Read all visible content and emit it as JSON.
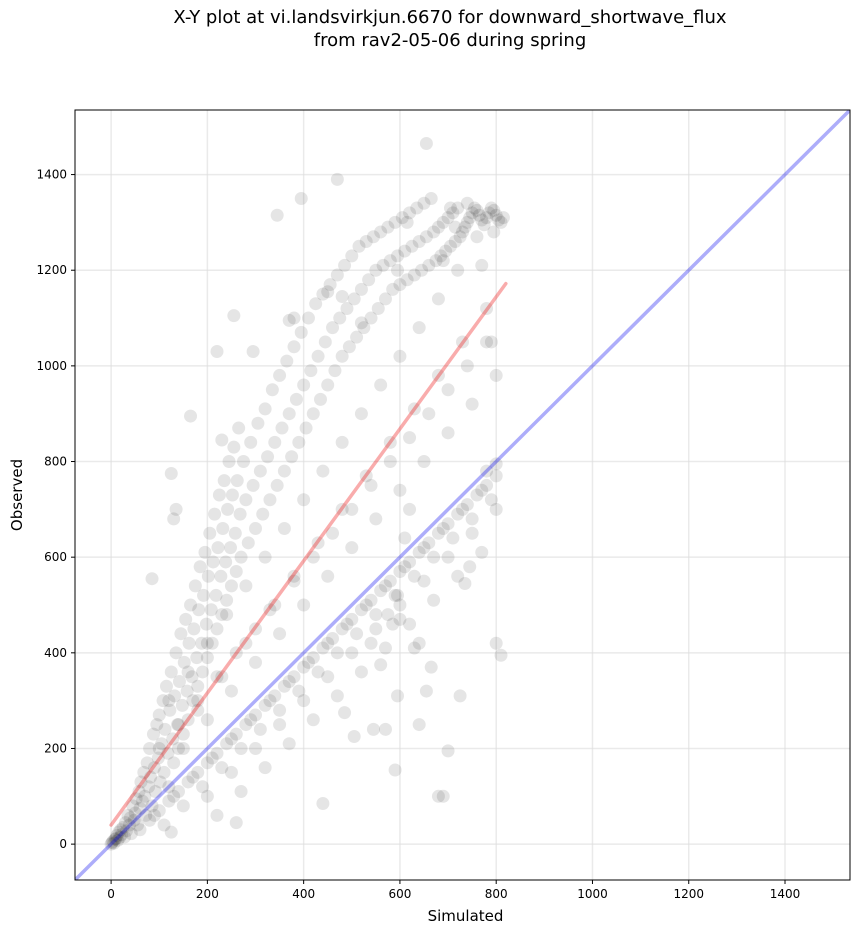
{
  "chart_data": {
    "type": "scatter",
    "title_lines": [
      "X-Y plot at vi.landsvirkjun.6670 for downward_shortwave_flux",
      "from rav2-05-06 during spring"
    ],
    "xlabel": "Simulated",
    "ylabel": "Observed",
    "xlim": [
      -75,
      1535
    ],
    "ylim": [
      -75,
      1535
    ],
    "xticks": [
      0,
      200,
      400,
      600,
      800,
      1000,
      1200,
      1400
    ],
    "yticks": [
      0,
      200,
      400,
      600,
      800,
      1000,
      1200,
      1400
    ],
    "grid": true,
    "identity_line": {
      "x": [
        -75,
        1535
      ],
      "y": [
        -75,
        1535
      ],
      "color": "#0000ee"
    },
    "regression_line": {
      "x": [
        0,
        820
      ],
      "y": [
        40,
        1172
      ],
      "color": "#ee1111"
    },
    "point_color": "#000000",
    "points": [
      [
        0,
        0
      ],
      [
        2,
        3
      ],
      [
        4,
        6
      ],
      [
        6,
        2
      ],
      [
        8,
        10
      ],
      [
        10,
        12
      ],
      [
        12,
        18
      ],
      [
        14,
        8
      ],
      [
        16,
        25
      ],
      [
        18,
        14
      ],
      [
        20,
        30
      ],
      [
        22,
        20
      ],
      [
        25,
        35
      ],
      [
        28,
        15
      ],
      [
        30,
        45
      ],
      [
        32,
        28
      ],
      [
        35,
        60
      ],
      [
        38,
        40
      ],
      [
        40,
        55
      ],
      [
        42,
        22
      ],
      [
        45,
        80
      ],
      [
        48,
        50
      ],
      [
        50,
        65
      ],
      [
        52,
        95
      ],
      [
        55,
        40
      ],
      [
        58,
        110
      ],
      [
        60,
        75
      ],
      [
        62,
        130
      ],
      [
        65,
        90
      ],
      [
        68,
        150
      ],
      [
        70,
        100
      ],
      [
        72,
        60
      ],
      [
        75,
        170
      ],
      [
        78,
        120
      ],
      [
        80,
        200
      ],
      [
        82,
        140
      ],
      [
        85,
        80
      ],
      [
        88,
        230
      ],
      [
        90,
        160
      ],
      [
        92,
        110
      ],
      [
        95,
        250
      ],
      [
        98,
        180
      ],
      [
        100,
        270
      ],
      [
        102,
        130
      ],
      [
        105,
        210
      ],
      [
        108,
        300
      ],
      [
        110,
        150
      ],
      [
        112,
        240
      ],
      [
        115,
        330
      ],
      [
        118,
        190
      ],
      [
        120,
        120
      ],
      [
        122,
        280
      ],
      [
        125,
        360
      ],
      [
        128,
        220
      ],
      [
        130,
        170
      ],
      [
        132,
        310
      ],
      [
        135,
        400
      ],
      [
        138,
        250
      ],
      [
        140,
        200
      ],
      [
        142,
        340
      ],
      [
        145,
        440
      ],
      [
        148,
        290
      ],
      [
        150,
        230
      ],
      [
        152,
        380
      ],
      [
        155,
        470
      ],
      [
        158,
        320
      ],
      [
        160,
        260
      ],
      [
        162,
        420
      ],
      [
        165,
        500
      ],
      [
        168,
        350
      ],
      [
        170,
        300
      ],
      [
        172,
        450
      ],
      [
        175,
        540
      ],
      [
        178,
        390
      ],
      [
        180,
        330
      ],
      [
        182,
        490
      ],
      [
        185,
        580
      ],
      [
        188,
        420
      ],
      [
        190,
        360
      ],
      [
        192,
        520
      ],
      [
        195,
        610
      ],
      [
        198,
        460
      ],
      [
        200,
        390
      ],
      [
        202,
        560
      ],
      [
        205,
        650
      ],
      [
        208,
        490
      ],
      [
        210,
        420
      ],
      [
        212,
        590
      ],
      [
        215,
        690
      ],
      [
        218,
        520
      ],
      [
        220,
        450
      ],
      [
        222,
        620
      ],
      [
        225,
        730
      ],
      [
        228,
        560
      ],
      [
        230,
        480
      ],
      [
        232,
        660
      ],
      [
        235,
        760
      ],
      [
        238,
        590
      ],
      [
        240,
        510
      ],
      [
        242,
        700
      ],
      [
        245,
        800
      ],
      [
        248,
        620
      ],
      [
        250,
        540
      ],
      [
        252,
        730
      ],
      [
        255,
        830
      ],
      [
        258,
        650
      ],
      [
        260,
        570
      ],
      [
        262,
        760
      ],
      [
        265,
        870
      ],
      [
        268,
        690
      ],
      [
        270,
        600
      ],
      [
        275,
        800
      ],
      [
        280,
        720
      ],
      [
        285,
        630
      ],
      [
        290,
        840
      ],
      [
        295,
        750
      ],
      [
        300,
        660
      ],
      [
        305,
        880
      ],
      [
        310,
        780
      ],
      [
        315,
        690
      ],
      [
        320,
        910
      ],
      [
        325,
        810
      ],
      [
        330,
        720
      ],
      [
        335,
        950
      ],
      [
        340,
        840
      ],
      [
        345,
        750
      ],
      [
        350,
        980
      ],
      [
        355,
        870
      ],
      [
        360,
        780
      ],
      [
        365,
        1010
      ],
      [
        370,
        900
      ],
      [
        375,
        810
      ],
      [
        380,
        1040
      ],
      [
        385,
        930
      ],
      [
        390,
        840
      ],
      [
        395,
        1070
      ],
      [
        400,
        960
      ],
      [
        405,
        870
      ],
      [
        410,
        1100
      ],
      [
        415,
        990
      ],
      [
        420,
        900
      ],
      [
        425,
        1130
      ],
      [
        430,
        1020
      ],
      [
        435,
        930
      ],
      [
        440,
        1150
      ],
      [
        445,
        1050
      ],
      [
        450,
        960
      ],
      [
        455,
        1170
      ],
      [
        460,
        1080
      ],
      [
        465,
        990
      ],
      [
        470,
        1190
      ],
      [
        475,
        1100
      ],
      [
        480,
        1020
      ],
      [
        485,
        1210
      ],
      [
        490,
        1120
      ],
      [
        495,
        1040
      ],
      [
        500,
        1230
      ],
      [
        505,
        1140
      ],
      [
        510,
        1060
      ],
      [
        515,
        1250
      ],
      [
        520,
        1160
      ],
      [
        525,
        1080
      ],
      [
        530,
        1260
      ],
      [
        535,
        1180
      ],
      [
        540,
        1100
      ],
      [
        545,
        1270
      ],
      [
        550,
        1200
      ],
      [
        555,
        1120
      ],
      [
        560,
        1280
      ],
      [
        565,
        1210
      ],
      [
        570,
        1140
      ],
      [
        575,
        1290
      ],
      [
        580,
        1220
      ],
      [
        585,
        1160
      ],
      [
        590,
        1300
      ],
      [
        595,
        1230
      ],
      [
        600,
        1170
      ],
      [
        605,
        1310
      ],
      [
        610,
        1240
      ],
      [
        615,
        1180
      ],
      [
        620,
        1320
      ],
      [
        625,
        1250
      ],
      [
        630,
        1190
      ],
      [
        635,
        1330
      ],
      [
        640,
        1260
      ],
      [
        645,
        1200
      ],
      [
        650,
        1340
      ],
      [
        655,
        1270
      ],
      [
        660,
        1210
      ],
      [
        665,
        1350
      ],
      [
        670,
        1280
      ],
      [
        675,
        1220
      ],
      [
        680,
        1290
      ],
      [
        685,
        1230
      ],
      [
        690,
        1300
      ],
      [
        695,
        1240
      ],
      [
        700,
        1310
      ],
      [
        705,
        1250
      ],
      [
        710,
        1320
      ],
      [
        715,
        1260
      ],
      [
        720,
        1330
      ],
      [
        725,
        1270
      ],
      [
        730,
        1280
      ],
      [
        735,
        1290
      ],
      [
        740,
        1300
      ],
      [
        745,
        1310
      ],
      [
        750,
        1320
      ],
      [
        755,
        1330
      ],
      [
        760,
        1325
      ],
      [
        765,
        1315
      ],
      [
        770,
        1305
      ],
      [
        775,
        1295
      ],
      [
        780,
        1310
      ],
      [
        785,
        1320
      ],
      [
        790,
        1330
      ],
      [
        795,
        1325
      ],
      [
        800,
        1315
      ],
      [
        805,
        1305
      ],
      [
        810,
        1300
      ],
      [
        815,
        1310
      ],
      [
        60,
        30
      ],
      [
        80,
        50
      ],
      [
        100,
        70
      ],
      [
        120,
        90
      ],
      [
        140,
        110
      ],
      [
        160,
        130
      ],
      [
        180,
        150
      ],
      [
        200,
        170
      ],
      [
        220,
        190
      ],
      [
        240,
        210
      ],
      [
        260,
        230
      ],
      [
        280,
        250
      ],
      [
        300,
        270
      ],
      [
        320,
        290
      ],
      [
        340,
        310
      ],
      [
        360,
        330
      ],
      [
        380,
        350
      ],
      [
        400,
        370
      ],
      [
        420,
        390
      ],
      [
        440,
        410
      ],
      [
        460,
        430
      ],
      [
        480,
        450
      ],
      [
        500,
        470
      ],
      [
        520,
        490
      ],
      [
        540,
        510
      ],
      [
        560,
        530
      ],
      [
        580,
        550
      ],
      [
        600,
        570
      ],
      [
        620,
        590
      ],
      [
        640,
        610
      ],
      [
        660,
        630
      ],
      [
        680,
        650
      ],
      [
        700,
        670
      ],
      [
        720,
        690
      ],
      [
        740,
        710
      ],
      [
        760,
        730
      ],
      [
        780,
        750
      ],
      [
        800,
        770
      ],
      [
        90,
        60
      ],
      [
        130,
        100
      ],
      [
        170,
        140
      ],
      [
        210,
        180
      ],
      [
        250,
        220
      ],
      [
        290,
        260
      ],
      [
        330,
        300
      ],
      [
        370,
        340
      ],
      [
        410,
        380
      ],
      [
        450,
        420
      ],
      [
        490,
        460
      ],
      [
        530,
        500
      ],
      [
        570,
        540
      ],
      [
        610,
        580
      ],
      [
        650,
        620
      ],
      [
        690,
        660
      ],
      [
        730,
        700
      ],
      [
        770,
        740
      ],
      [
        110,
        40
      ],
      [
        150,
        80
      ],
      [
        190,
        120
      ],
      [
        230,
        160
      ],
      [
        270,
        200
      ],
      [
        310,
        240
      ],
      [
        350,
        280
      ],
      [
        390,
        320
      ],
      [
        430,
        360
      ],
      [
        470,
        400
      ],
      [
        510,
        440
      ],
      [
        550,
        480
      ],
      [
        590,
        520
      ],
      [
        630,
        560
      ],
      [
        670,
        600
      ],
      [
        710,
        640
      ],
      [
        750,
        680
      ],
      [
        790,
        720
      ],
      [
        150,
        200
      ],
      [
        200,
        260
      ],
      [
        250,
        320
      ],
      [
        300,
        380
      ],
      [
        350,
        440
      ],
      [
        400,
        500
      ],
      [
        450,
        560
      ],
      [
        500,
        620
      ],
      [
        550,
        680
      ],
      [
        600,
        740
      ],
      [
        650,
        800
      ],
      [
        700,
        860
      ],
      [
        750,
        920
      ],
      [
        800,
        980
      ],
      [
        180,
        280
      ],
      [
        230,
        350
      ],
      [
        280,
        420
      ],
      [
        330,
        490
      ],
      [
        380,
        560
      ],
      [
        430,
        630
      ],
      [
        480,
        700
      ],
      [
        530,
        770
      ],
      [
        580,
        840
      ],
      [
        630,
        910
      ],
      [
        680,
        980
      ],
      [
        730,
        1050
      ],
      [
        780,
        1120
      ],
      [
        120,
        300
      ],
      [
        160,
        360
      ],
      [
        200,
        420
      ],
      [
        240,
        480
      ],
      [
        280,
        540
      ],
      [
        320,
        600
      ],
      [
        360,
        660
      ],
      [
        400,
        720
      ],
      [
        440,
        780
      ],
      [
        480,
        840
      ],
      [
        520,
        900
      ],
      [
        560,
        960
      ],
      [
        600,
        1020
      ],
      [
        640,
        1080
      ],
      [
        680,
        1140
      ],
      [
        720,
        1200
      ],
      [
        100,
        200
      ],
      [
        140,
        250
      ],
      [
        180,
        300
      ],
      [
        220,
        350
      ],
      [
        260,
        400
      ],
      [
        300,
        450
      ],
      [
        340,
        500
      ],
      [
        380,
        550
      ],
      [
        420,
        600
      ],
      [
        460,
        650
      ],
      [
        500,
        700
      ],
      [
        540,
        750
      ],
      [
        580,
        800
      ],
      [
        620,
        850
      ],
      [
        660,
        900
      ],
      [
        700,
        950
      ],
      [
        740,
        1000
      ],
      [
        780,
        1050
      ],
      [
        200,
        100
      ],
      [
        250,
        150
      ],
      [
        300,
        200
      ],
      [
        350,
        250
      ],
      [
        400,
        300
      ],
      [
        450,
        350
      ],
      [
        500,
        400
      ],
      [
        550,
        450
      ],
      [
        600,
        500
      ],
      [
        650,
        550
      ],
      [
        700,
        600
      ],
      [
        750,
        650
      ],
      [
        800,
        700
      ],
      [
        220,
        60
      ],
      [
        270,
        110
      ],
      [
        320,
        160
      ],
      [
        370,
        210
      ],
      [
        420,
        260
      ],
      [
        470,
        310
      ],
      [
        520,
        360
      ],
      [
        570,
        410
      ],
      [
        620,
        460
      ],
      [
        670,
        510
      ],
      [
        720,
        560
      ],
      [
        770,
        610
      ],
      [
        85,
        555
      ],
      [
        125,
        775
      ],
      [
        135,
        700
      ],
      [
        130,
        680
      ],
      [
        165,
        895
      ],
      [
        230,
        845
      ],
      [
        255,
        1105
      ],
      [
        220,
        1030
      ],
      [
        295,
        1030
      ],
      [
        345,
        1315
      ],
      [
        380,
        1100
      ],
      [
        370,
        1095
      ],
      [
        395,
        1350
      ],
      [
        450,
        1155
      ],
      [
        470,
        1390
      ],
      [
        480,
        1145
      ],
      [
        520,
        1090
      ],
      [
        595,
        1200
      ],
      [
        615,
        1300
      ],
      [
        655,
        1465
      ],
      [
        800,
        420
      ],
      [
        810,
        395
      ],
      [
        735,
        545
      ],
      [
        725,
        310
      ],
      [
        700,
        195
      ],
      [
        590,
        155
      ],
      [
        640,
        250
      ],
      [
        690,
        100
      ],
      [
        680,
        100
      ],
      [
        440,
        85
      ],
      [
        260,
        45
      ],
      [
        125,
        25
      ],
      [
        505,
        225
      ],
      [
        485,
        275
      ],
      [
        545,
        240
      ],
      [
        570,
        240
      ],
      [
        595,
        310
      ],
      [
        655,
        320
      ],
      [
        665,
        370
      ],
      [
        745,
        580
      ],
      [
        800,
        795
      ],
      [
        780,
        780
      ],
      [
        790,
        1050
      ],
      [
        795,
        1280
      ],
      [
        760,
        1270
      ],
      [
        770,
        1210
      ],
      [
        740,
        1340
      ],
      [
        705,
        1330
      ],
      [
        715,
        1290
      ],
      [
        690,
        1220
      ],
      [
        610,
        640
      ],
      [
        620,
        700
      ],
      [
        600,
        470
      ],
      [
        585,
        460
      ],
      [
        575,
        480
      ],
      [
        595,
        520
      ],
      [
        640,
        420
      ],
      [
        630,
        410
      ],
      [
        560,
        375
      ],
      [
        540,
        420
      ]
    ]
  }
}
